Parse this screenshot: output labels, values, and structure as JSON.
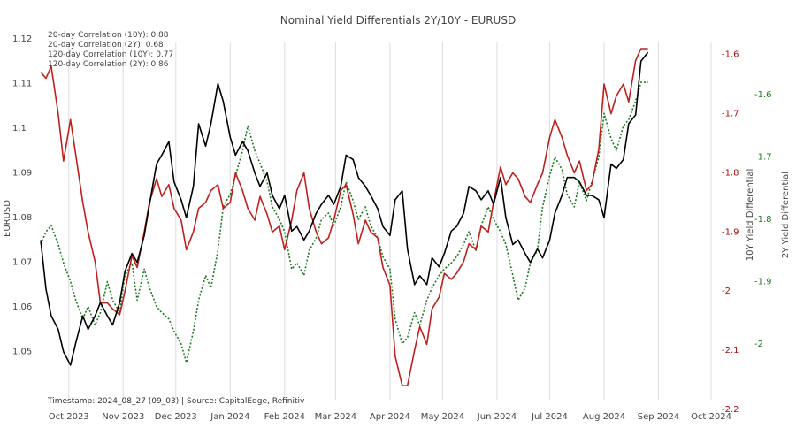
{
  "chart_data": {
    "type": "line",
    "title": "Nominal Yield Differentials 2Y/10Y - EURUSD",
    "annotations": [
      "20-day Correlation (10Y): 0.88",
      "20-day Correlation (2Y): 0.68",
      "120-day Correlation (10Y): 0.77",
      "120-day Correlation (2Y): 0.86"
    ],
    "footer": "Timestamp: 2024_08_27 (09_03) | Source: CapitalEdge, Refinitiv",
    "x_ticks": [
      "Oct 2023",
      "Nov 2023",
      "Dec 2023",
      "Jan 2024",
      "Feb 2024",
      "Mar 2024",
      "Apr 2024",
      "May 2024",
      "Jun 2024",
      "Jul 2024",
      "Aug 2024",
      "Sep 2024",
      "Oct 2024"
    ],
    "xlim": [
      "2023-09-15",
      "2024-10-03"
    ],
    "grid_x": true,
    "y_axes": [
      {
        "label": "EURUSD",
        "range": [
          1.045,
          1.12
        ],
        "ticks": [
          "1.05",
          "1.06",
          "1.07",
          "1.08",
          "1.09",
          "1.1",
          "1.11",
          "1.12"
        ],
        "side": "left",
        "color": "#444444"
      },
      {
        "label": "10Y Yield Differential",
        "range": [
          -2.2,
          -1.59
        ],
        "ticks": [
          "-2.2",
          "-2.1",
          "-2",
          "-1.9",
          "-1.8",
          "-1.7",
          "-1.6"
        ],
        "side": "right",
        "color": "#a01010"
      },
      {
        "label": "2Y Yield Differential",
        "range": [
          -2.04,
          -1.56
        ],
        "ticks": [
          "-2",
          "-1.9",
          "-1.8",
          "-1.7",
          "-1.6"
        ],
        "side": "right",
        "color": "#1f7a1f"
      }
    ],
    "series": [
      {
        "name": "EURUSD",
        "axis": 0,
        "color": "#000000",
        "style": "solid",
        "x": [
          "2023-09-15",
          "2023-09-18",
          "2023-09-21",
          "2023-09-25",
          "2023-09-28",
          "2023-10-02",
          "2023-10-05",
          "2023-10-09",
          "2023-10-12",
          "2023-10-16",
          "2023-10-19",
          "2023-10-23",
          "2023-10-26",
          "2023-10-30",
          "2023-11-02",
          "2023-11-06",
          "2023-11-09",
          "2023-11-13",
          "2023-11-16",
          "2023-11-20",
          "2023-11-23",
          "2023-11-27",
          "2023-11-30",
          "2023-12-04",
          "2023-12-07",
          "2023-12-11",
          "2023-12-14",
          "2023-12-18",
          "2023-12-21",
          "2023-12-25",
          "2023-12-28",
          "2024-01-01",
          "2024-01-04",
          "2024-01-08",
          "2024-01-11",
          "2024-01-15",
          "2024-01-18",
          "2024-01-22",
          "2024-01-25",
          "2024-01-29",
          "2024-02-01",
          "2024-02-05",
          "2024-02-08",
          "2024-02-12",
          "2024-02-15",
          "2024-02-19",
          "2024-02-22",
          "2024-02-26",
          "2024-02-29",
          "2024-03-04",
          "2024-03-07",
          "2024-03-11",
          "2024-03-14",
          "2024-03-18",
          "2024-03-21",
          "2024-03-25",
          "2024-03-28",
          "2024-04-01",
          "2024-04-04",
          "2024-04-08",
          "2024-04-11",
          "2024-04-15",
          "2024-04-18",
          "2024-04-22",
          "2024-04-25",
          "2024-04-29",
          "2024-05-02",
          "2024-05-06",
          "2024-05-09",
          "2024-05-13",
          "2024-05-16",
          "2024-05-20",
          "2024-05-23",
          "2024-05-27",
          "2024-05-30",
          "2024-06-03",
          "2024-06-06",
          "2024-06-10",
          "2024-06-13",
          "2024-06-17",
          "2024-06-20",
          "2024-06-24",
          "2024-06-27",
          "2024-07-01",
          "2024-07-04",
          "2024-07-08",
          "2024-07-11",
          "2024-07-15",
          "2024-07-18",
          "2024-07-22",
          "2024-07-25",
          "2024-07-29",
          "2024-08-01",
          "2024-08-05",
          "2024-08-08",
          "2024-08-12",
          "2024-08-15",
          "2024-08-19",
          "2024-08-22",
          "2024-08-26"
        ],
        "values": [
          1.075,
          1.064,
          1.058,
          1.055,
          1.05,
          1.047,
          1.052,
          1.058,
          1.055,
          1.058,
          1.061,
          1.058,
          1.056,
          1.061,
          1.068,
          1.072,
          1.07,
          1.076,
          1.083,
          1.092,
          1.094,
          1.097,
          1.088,
          1.084,
          1.08,
          1.087,
          1.101,
          1.096,
          1.101,
          1.11,
          1.106,
          1.098,
          1.094,
          1.097,
          1.095,
          1.09,
          1.087,
          1.09,
          1.085,
          1.082,
          1.085,
          1.077,
          1.078,
          1.075,
          1.077,
          1.081,
          1.083,
          1.085,
          1.083,
          1.087,
          1.094,
          1.093,
          1.089,
          1.087,
          1.085,
          1.082,
          1.078,
          1.076,
          1.084,
          1.086,
          1.073,
          1.065,
          1.067,
          1.065,
          1.071,
          1.069,
          1.072,
          1.077,
          1.078,
          1.081,
          1.087,
          1.086,
          1.084,
          1.086,
          1.083,
          1.089,
          1.08,
          1.074,
          1.075,
          1.072,
          1.07,
          1.073,
          1.071,
          1.075,
          1.081,
          1.085,
          1.089,
          1.089,
          1.088,
          1.085,
          1.085,
          1.084,
          1.08,
          1.092,
          1.091,
          1.093,
          1.101,
          1.103,
          1.115,
          1.117
        ]
      },
      {
        "name": "10Y Yield Differential",
        "axis": 1,
        "color": "#c0201c",
        "style": "solid",
        "x": [
          "2023-09-15",
          "2023-09-18",
          "2023-09-21",
          "2023-09-25",
          "2023-09-28",
          "2023-10-02",
          "2023-10-05",
          "2023-10-09",
          "2023-10-12",
          "2023-10-16",
          "2023-10-19",
          "2023-10-23",
          "2023-10-26",
          "2023-10-30",
          "2023-11-02",
          "2023-11-06",
          "2023-11-09",
          "2023-11-13",
          "2023-11-16",
          "2023-11-20",
          "2023-11-23",
          "2023-11-27",
          "2023-11-30",
          "2023-12-04",
          "2023-12-07",
          "2023-12-11",
          "2023-12-14",
          "2023-12-18",
          "2023-12-21",
          "2023-12-25",
          "2023-12-28",
          "2024-01-01",
          "2024-01-04",
          "2024-01-08",
          "2024-01-11",
          "2024-01-15",
          "2024-01-18",
          "2024-01-22",
          "2024-01-25",
          "2024-01-29",
          "2024-02-01",
          "2024-02-05",
          "2024-02-08",
          "2024-02-12",
          "2024-02-15",
          "2024-02-19",
          "2024-02-22",
          "2024-02-26",
          "2024-02-29",
          "2024-03-04",
          "2024-03-07",
          "2024-03-11",
          "2024-03-14",
          "2024-03-18",
          "2024-03-21",
          "2024-03-25",
          "2024-03-28",
          "2024-04-01",
          "2024-04-04",
          "2024-04-08",
          "2024-04-11",
          "2024-04-15",
          "2024-04-18",
          "2024-04-22",
          "2024-04-25",
          "2024-04-29",
          "2024-05-02",
          "2024-05-06",
          "2024-05-09",
          "2024-05-13",
          "2024-05-16",
          "2024-05-20",
          "2024-05-23",
          "2024-05-27",
          "2024-05-30",
          "2024-06-03",
          "2024-06-06",
          "2024-06-10",
          "2024-06-13",
          "2024-06-17",
          "2024-06-20",
          "2024-06-24",
          "2024-06-27",
          "2024-07-01",
          "2024-07-04",
          "2024-07-08",
          "2024-07-11",
          "2024-07-15",
          "2024-07-18",
          "2024-07-22",
          "2024-07-25",
          "2024-07-29",
          "2024-08-01",
          "2024-08-05",
          "2024-08-08",
          "2024-08-12",
          "2024-08-15",
          "2024-08-19",
          "2024-08-22",
          "2024-08-26"
        ],
        "values": [
          -1.63,
          -1.64,
          -1.62,
          -1.7,
          -1.78,
          -1.71,
          -1.77,
          -1.85,
          -1.9,
          -1.95,
          -2.02,
          -2.02,
          -2.03,
          -2.04,
          -2.0,
          -1.94,
          -1.96,
          -1.9,
          -1.85,
          -1.81,
          -1.84,
          -1.82,
          -1.86,
          -1.88,
          -1.93,
          -1.9,
          -1.86,
          -1.85,
          -1.83,
          -1.82,
          -1.86,
          -1.85,
          -1.8,
          -1.83,
          -1.86,
          -1.88,
          -1.84,
          -1.87,
          -1.9,
          -1.89,
          -1.93,
          -1.88,
          -1.83,
          -1.8,
          -1.86,
          -1.9,
          -1.92,
          -1.91,
          -1.88,
          -1.83,
          -1.82,
          -1.87,
          -1.92,
          -1.88,
          -1.9,
          -1.91,
          -1.96,
          -1.99,
          -2.11,
          -2.16,
          -2.16,
          -2.1,
          -2.06,
          -2.09,
          -2.03,
          -2.01,
          -1.97,
          -1.98,
          -1.97,
          -1.95,
          -1.92,
          -1.93,
          -1.89,
          -1.9,
          -1.85,
          -1.79,
          -1.82,
          -1.8,
          -1.81,
          -1.84,
          -1.85,
          -1.82,
          -1.8,
          -1.74,
          -1.71,
          -1.74,
          -1.77,
          -1.8,
          -1.78,
          -1.83,
          -1.82,
          -1.76,
          -1.65,
          -1.7,
          -1.67,
          -1.65,
          -1.68,
          -1.61,
          -1.59,
          -1.59
        ]
      },
      {
        "name": "2Y Yield Differential",
        "axis": 2,
        "color": "#1f7a1f",
        "style": "dotted",
        "x": [
          "2023-09-15",
          "2023-09-18",
          "2023-09-21",
          "2023-09-25",
          "2023-09-28",
          "2023-10-02",
          "2023-10-05",
          "2023-10-09",
          "2023-10-12",
          "2023-10-16",
          "2023-10-19",
          "2023-10-23",
          "2023-10-26",
          "2023-10-30",
          "2023-11-02",
          "2023-11-06",
          "2023-11-09",
          "2023-11-13",
          "2023-11-16",
          "2023-11-20",
          "2023-11-23",
          "2023-11-27",
          "2023-11-30",
          "2023-12-04",
          "2023-12-07",
          "2023-12-11",
          "2023-12-14",
          "2023-12-18",
          "2023-12-21",
          "2023-12-25",
          "2023-12-28",
          "2024-01-01",
          "2024-01-04",
          "2024-01-08",
          "2024-01-11",
          "2024-01-15",
          "2024-01-18",
          "2024-01-22",
          "2024-01-25",
          "2024-01-29",
          "2024-02-01",
          "2024-02-05",
          "2024-02-08",
          "2024-02-12",
          "2024-02-15",
          "2024-02-19",
          "2024-02-22",
          "2024-02-26",
          "2024-02-29",
          "2024-03-04",
          "2024-03-07",
          "2024-03-11",
          "2024-03-14",
          "2024-03-18",
          "2024-03-21",
          "2024-03-25",
          "2024-03-28",
          "2024-04-01",
          "2024-04-04",
          "2024-04-08",
          "2024-04-11",
          "2024-04-15",
          "2024-04-18",
          "2024-04-22",
          "2024-04-25",
          "2024-04-29",
          "2024-05-02",
          "2024-05-06",
          "2024-05-09",
          "2024-05-13",
          "2024-05-16",
          "2024-05-20",
          "2024-05-23",
          "2024-05-27",
          "2024-05-30",
          "2024-06-03",
          "2024-06-06",
          "2024-06-10",
          "2024-06-13",
          "2024-06-17",
          "2024-06-20",
          "2024-06-24",
          "2024-06-27",
          "2024-07-01",
          "2024-07-04",
          "2024-07-08",
          "2024-07-11",
          "2024-07-15",
          "2024-07-18",
          "2024-07-22",
          "2024-07-25",
          "2024-07-29",
          "2024-08-01",
          "2024-08-05",
          "2024-08-08",
          "2024-08-12",
          "2024-08-15",
          "2024-08-19",
          "2024-08-22",
          "2024-08-26"
        ],
        "values": [
          -1.84,
          -1.82,
          -1.81,
          -1.84,
          -1.87,
          -1.9,
          -1.93,
          -1.96,
          -1.94,
          -1.97,
          -1.95,
          -1.9,
          -1.93,
          -1.95,
          -1.89,
          -1.87,
          -1.93,
          -1.88,
          -1.91,
          -1.94,
          -1.95,
          -1.96,
          -1.98,
          -2.0,
          -2.03,
          -1.98,
          -1.93,
          -1.89,
          -1.91,
          -1.85,
          -1.78,
          -1.76,
          -1.73,
          -1.69,
          -1.65,
          -1.69,
          -1.71,
          -1.74,
          -1.78,
          -1.8,
          -1.82,
          -1.88,
          -1.87,
          -1.89,
          -1.85,
          -1.83,
          -1.8,
          -1.79,
          -1.81,
          -1.78,
          -1.74,
          -1.77,
          -1.8,
          -1.78,
          -1.81,
          -1.83,
          -1.86,
          -1.88,
          -1.96,
          -2.0,
          -1.99,
          -1.95,
          -1.97,
          -1.93,
          -1.91,
          -1.89,
          -1.88,
          -1.87,
          -1.86,
          -1.84,
          -1.82,
          -1.85,
          -1.81,
          -1.78,
          -1.8,
          -1.82,
          -1.84,
          -1.89,
          -1.93,
          -1.91,
          -1.87,
          -1.85,
          -1.78,
          -1.73,
          -1.7,
          -1.72,
          -1.76,
          -1.78,
          -1.74,
          -1.77,
          -1.74,
          -1.7,
          -1.63,
          -1.67,
          -1.69,
          -1.65,
          -1.64,
          -1.61,
          -1.58,
          -1.58
        ]
      }
    ]
  }
}
